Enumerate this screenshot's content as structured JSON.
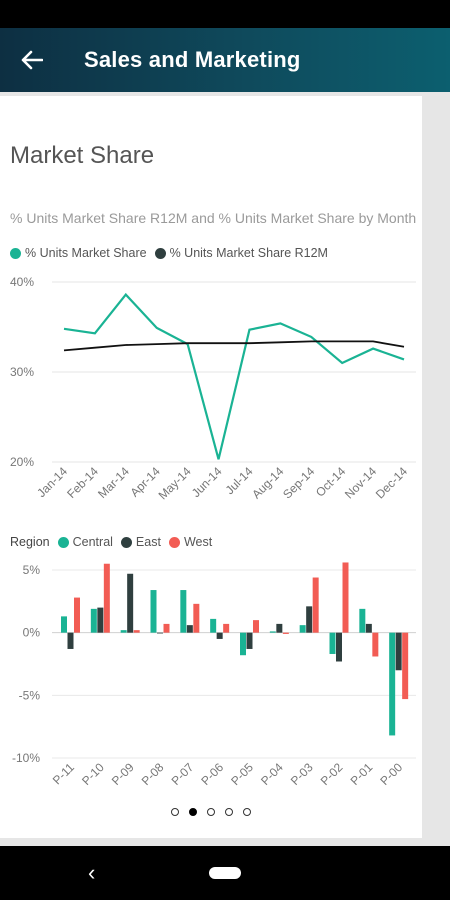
{
  "header": {
    "title": "Sales and Marketing",
    "back_icon": "arrow-left-icon"
  },
  "card": {
    "title": "Market Share"
  },
  "line_chart": {
    "subtitle": "% Units Market Share R12M and % Units Market Share by Month",
    "legend": [
      "% Units Market Share",
      "% Units Market Share R12M"
    ]
  },
  "bar_chart": {
    "legend_title": "Region",
    "legend": [
      "Central",
      "East",
      "West"
    ]
  },
  "colors": {
    "teal": "#1ab394",
    "dark": "#2f3f3f",
    "red": "#f25c54",
    "line_dark": "#111111"
  },
  "chart_data": [
    {
      "type": "line",
      "categories": [
        "Jan-14",
        "Feb-14",
        "Mar-14",
        "Apr-14",
        "May-14",
        "Jun-14",
        "Jul-14",
        "Aug-14",
        "Sep-14",
        "Oct-14",
        "Nov-14",
        "Dec-14"
      ],
      "series": [
        {
          "name": "% Units Market Share",
          "values": [
            34.8,
            34.3,
            38.6,
            34.9,
            33.1,
            20.3,
            34.7,
            35.4,
            33.9,
            31.0,
            32.6,
            31.4
          ]
        },
        {
          "name": "% Units Market Share R12M",
          "values": [
            32.4,
            32.7,
            33.0,
            33.1,
            33.2,
            33.2,
            33.2,
            33.3,
            33.4,
            33.4,
            33.4,
            32.8
          ]
        }
      ],
      "y_ticks": [
        "40%",
        "30%",
        "20%"
      ],
      "ylim": [
        20,
        40
      ]
    },
    {
      "type": "bar",
      "categories": [
        "P-11",
        "P-10",
        "P-09",
        "P-08",
        "P-07",
        "P-06",
        "P-05",
        "P-04",
        "P-03",
        "P-02",
        "P-01",
        "P-00"
      ],
      "series": [
        {
          "name": "Central",
          "values": [
            1.3,
            1.9,
            0.2,
            3.4,
            3.4,
            1.1,
            -1.8,
            0.1,
            0.6,
            -1.7,
            1.9,
            -8.2
          ]
        },
        {
          "name": "East",
          "values": [
            -1.3,
            2.0,
            4.7,
            0.0,
            0.6,
            -0.5,
            -1.3,
            0.7,
            2.1,
            -2.3,
            0.7,
            -3.0
          ]
        },
        {
          "name": "West",
          "values": [
            2.8,
            5.5,
            0.2,
            0.7,
            2.3,
            0.7,
            1.0,
            -0.1,
            4.4,
            5.6,
            -1.9,
            -5.3
          ]
        }
      ],
      "y_ticks": [
        "5%",
        "0%",
        "-5%",
        "-10%"
      ],
      "ylim": [
        -10,
        5
      ]
    }
  ],
  "pager": {
    "count": 5,
    "active": 1
  },
  "nav": {
    "back_icon": "triangle-back-icon",
    "home_icon": "home-pill-icon"
  }
}
